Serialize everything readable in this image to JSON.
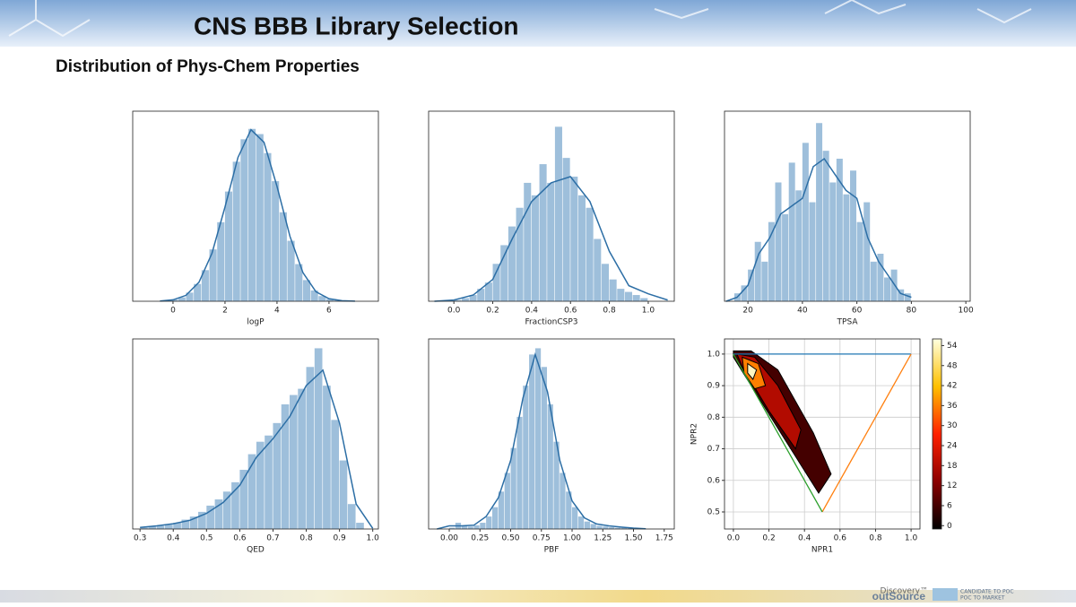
{
  "title": "CNS BBB Library Selection",
  "subtitle": "Distribution of Phys-Chem Properties",
  "footer": {
    "brand_top": "Discovery™",
    "brand": "outSource",
    "tagline_1": "CANDIDATE TO POC",
    "tagline_2": "POC TO MARKET"
  },
  "chart_data": [
    {
      "type": "histogram",
      "x_label": "logP",
      "xlim": [
        -1.55,
        7.9
      ],
      "xticks": [
        0,
        2,
        4,
        6
      ],
      "ylim": [
        0,
        0.44
      ],
      "color": "#9ebfdb",
      "bins": [
        -0.4,
        -0.1,
        0.2,
        0.5,
        0.8,
        1.1,
        1.4,
        1.7,
        2.0,
        2.3,
        2.6,
        2.9,
        3.2,
        3.5,
        3.8,
        4.1,
        4.4,
        4.7,
        5.0,
        5.3,
        5.6,
        5.9,
        6.2,
        6.5,
        6.8
      ],
      "values": [
        0.0015,
        0.004,
        0.009,
        0.02,
        0.04,
        0.072,
        0.12,
        0.183,
        0.254,
        0.323,
        0.375,
        0.399,
        0.387,
        0.343,
        0.278,
        0.206,
        0.14,
        0.086,
        0.049,
        0.025,
        0.012,
        0.005,
        0.002,
        0.001
      ],
      "kde": {
        "color": "#2c6ea5",
        "x": [
          -0.5,
          0,
          0.5,
          1,
          1.5,
          2,
          2.5,
          3,
          3.5,
          4,
          4.5,
          5,
          5.5,
          6,
          6.5,
          7
        ],
        "values": [
          0.0006,
          0.0033,
          0.0136,
          0.044,
          0.111,
          0.218,
          0.333,
          0.397,
          0.368,
          0.266,
          0.15,
          0.066,
          0.022,
          0.006,
          0.0012,
          0.0002
        ]
      }
    },
    {
      "type": "histogram",
      "x_label": "FractionCSP3",
      "xlim": [
        -0.13,
        1.134
      ],
      "xticks": [
        {
          "value": 0,
          "label": "0.0"
        },
        0.2,
        0.4,
        0.6,
        0.8,
        {
          "value": 1,
          "label": "1.0"
        }
      ],
      "ylim": [
        0,
        3.05
      ],
      "color": "#9ebfdb",
      "bins": [
        0,
        0.04,
        0.08,
        0.12,
        0.16,
        0.2,
        0.24,
        0.28,
        0.32,
        0.36,
        0.4,
        0.44,
        0.48,
        0.52,
        0.56,
        0.6,
        0.64,
        0.68,
        0.72,
        0.76,
        0.8,
        0.84,
        0.88,
        0.92,
        0.96,
        1.0
      ],
      "values": [
        0.02,
        0.05,
        0.1,
        0.2,
        0.3,
        0.6,
        0.9,
        1.2,
        1.5,
        1.9,
        1.7,
        2.2,
        1.9,
        2.8,
        2.3,
        2.0,
        1.7,
        1.5,
        1.0,
        0.6,
        0.35,
        0.2,
        0.15,
        0.1,
        0.05
      ],
      "kde": {
        "color": "#2c6ea5",
        "x": [
          -0.1,
          0,
          0.1,
          0.2,
          0.3,
          0.4,
          0.5,
          0.6,
          0.7,
          0.8,
          0.9,
          1.0,
          1.1
        ],
        "values": [
          0,
          0.02,
          0.1,
          0.35,
          1.0,
          1.6,
          1.9,
          2.0,
          1.6,
          0.8,
          0.25,
          0.12,
          0.02
        ]
      }
    },
    {
      "type": "histogram",
      "x_label": "TPSA",
      "xlim": [
        11.4,
        101.6
      ],
      "xticks": [
        20,
        40,
        60,
        80,
        100
      ],
      "ylim": [
        0,
        0.048
      ],
      "color": "#9ebfdb",
      "bins": [
        15,
        17.5,
        20,
        22.5,
        25,
        27.5,
        30,
        32.5,
        35,
        37.5,
        40,
        42.5,
        45,
        47.5,
        50,
        52.5,
        55,
        57.5,
        60,
        62.5,
        65,
        67.5,
        70,
        72.5,
        75,
        77.5,
        80
      ],
      "values": [
        0.002,
        0.004,
        0.008,
        0.015,
        0.01,
        0.02,
        0.03,
        0.022,
        0.035,
        0.028,
        0.04,
        0.025,
        0.045,
        0.038,
        0.03,
        0.036,
        0.027,
        0.033,
        0.02,
        0.025,
        0.01,
        0.012,
        0.006,
        0.008,
        0.003,
        0.002
      ],
      "kde": {
        "color": "#2c6ea5",
        "x": [
          12,
          16,
          20,
          24,
          28,
          32,
          36,
          40,
          44,
          48,
          52,
          56,
          60,
          64,
          68,
          72,
          76,
          80
        ],
        "values": [
          0,
          0.001,
          0.004,
          0.012,
          0.016,
          0.022,
          0.024,
          0.026,
          0.034,
          0.036,
          0.032,
          0.028,
          0.026,
          0.016,
          0.01,
          0.006,
          0.002,
          0.001
        ]
      }
    },
    {
      "type": "histogram",
      "x_label": "QED",
      "xlim": [
        0.278,
        1.017
      ],
      "xticks": [
        0.3,
        0.4,
        0.5,
        0.6,
        0.7,
        0.8,
        0.9,
        {
          "value": 1,
          "label": "1.0"
        }
      ],
      "ylim": [
        0,
        6.1
      ],
      "color": "#9ebfdb",
      "bins": [
        0.3,
        0.325,
        0.35,
        0.375,
        0.4,
        0.425,
        0.45,
        0.475,
        0.5,
        0.525,
        0.55,
        0.575,
        0.6,
        0.625,
        0.65,
        0.675,
        0.7,
        0.725,
        0.75,
        0.775,
        0.8,
        0.825,
        0.85,
        0.875,
        0.9,
        0.925,
        0.95,
        0.975
      ],
      "values": [
        0.05,
        0.08,
        0.1,
        0.14,
        0.2,
        0.3,
        0.4,
        0.55,
        0.75,
        0.95,
        1.2,
        1.5,
        1.9,
        2.4,
        2.8,
        3.0,
        3.4,
        4.0,
        4.3,
        4.5,
        5.2,
        5.8,
        4.6,
        3.5,
        2.2,
        0.8,
        0.2
      ],
      "kde": {
        "color": "#2c6ea5",
        "x": [
          0.3,
          0.35,
          0.4,
          0.45,
          0.5,
          0.55,
          0.6,
          0.65,
          0.7,
          0.75,
          0.8,
          0.85,
          0.9,
          0.95,
          1.0
        ],
        "values": [
          0.05,
          0.1,
          0.17,
          0.28,
          0.5,
          0.85,
          1.4,
          2.3,
          2.9,
          3.6,
          4.6,
          5.1,
          3.4,
          0.8,
          0.02
        ]
      }
    },
    {
      "type": "histogram",
      "x_label": "PBF",
      "xlim": [
        -0.168,
        1.832
      ],
      "xticks": [
        {
          "value": 0,
          "label": "0.00"
        },
        0.25,
        {
          "value": 0.5,
          "label": "0.50"
        },
        0.75,
        {
          "value": 1,
          "label": "1.00"
        },
        1.25,
        {
          "value": 1.5,
          "label": "1.50"
        },
        1.75
      ],
      "ylim": [
        0,
        3.05
      ],
      "color": "#9ebfdb",
      "bins": [
        0,
        0.05,
        0.1,
        0.15,
        0.2,
        0.25,
        0.3,
        0.35,
        0.4,
        0.45,
        0.5,
        0.55,
        0.6,
        0.65,
        0.7,
        0.75,
        0.8,
        0.85,
        0.9,
        0.95,
        1.0,
        1.05,
        1.1,
        1.15,
        1.2,
        1.25,
        1.3,
        1.35,
        1.4,
        1.45,
        1.5,
        1.55,
        1.6
      ],
      "values": [
        0.02,
        0.1,
        0.05,
        0.04,
        0.06,
        0.1,
        0.2,
        0.35,
        0.6,
        0.9,
        1.3,
        1.8,
        2.3,
        2.8,
        2.9,
        2.6,
        2.0,
        1.4,
        0.9,
        0.6,
        0.35,
        0.2,
        0.12,
        0.08,
        0.05,
        0.04,
        0.03,
        0.02,
        0.02,
        0.01,
        0.01,
        0.005
      ],
      "kde": {
        "color": "#2c6ea5",
        "x": [
          -0.1,
          0,
          0.1,
          0.2,
          0.3,
          0.4,
          0.5,
          0.6,
          0.7,
          0.8,
          0.9,
          1.0,
          1.1,
          1.2,
          1.3,
          1.4,
          1.5,
          1.6
        ],
        "values": [
          0,
          0.05,
          0.05,
          0.06,
          0.2,
          0.5,
          1.1,
          2.1,
          2.8,
          2.2,
          1.1,
          0.45,
          0.18,
          0.08,
          0.05,
          0.03,
          0.015,
          0.005
        ]
      }
    },
    {
      "type": "contour",
      "x_label": "NPR1",
      "y_label": "NPR2",
      "grid": true,
      "xlim": [
        -0.05,
        1.05
      ],
      "xticks": [
        {
          "value": 0,
          "label": "0.0"
        },
        0.2,
        0.4,
        0.6,
        0.8,
        {
          "value": 1,
          "label": "1.0"
        }
      ],
      "ylim": [
        0.446,
        1.048
      ],
      "yticks": [
        0.5,
        0.6,
        0.7,
        0.8,
        0.9,
        {
          "value": 1,
          "label": "1.0"
        }
      ],
      "clim": [
        -1,
        56
      ],
      "cticks": [
        0,
        6,
        12,
        18,
        24,
        30,
        36,
        42,
        48,
        54
      ],
      "colorbar_colors": [
        "#000000",
        "#8b0000",
        "#ff2000",
        "#ffc000",
        "#ffffe0"
      ],
      "lines": [
        {
          "color": "#1f77b4",
          "x": [
            0,
            1
          ],
          "y": [
            1,
            1
          ]
        },
        {
          "color": "#ff7f0e",
          "x": [
            1,
            0.5
          ],
          "y": [
            1,
            0.5
          ]
        },
        {
          "color": "#2ca02c",
          "x": [
            0,
            0.5
          ],
          "y": [
            1,
            0.5
          ]
        }
      ],
      "contours": [
        {
          "level": 6,
          "x": [
            0.0,
            0.1,
            0.25,
            0.45,
            0.55,
            0.48,
            0.3,
            0.1,
            0.0
          ],
          "y": [
            1.01,
            1.01,
            0.95,
            0.75,
            0.62,
            0.56,
            0.72,
            0.9,
            0.99
          ]
        },
        {
          "level": 18,
          "x": [
            0.02,
            0.12,
            0.25,
            0.38,
            0.35,
            0.2,
            0.05
          ],
          "y": [
            1.0,
            0.99,
            0.9,
            0.76,
            0.7,
            0.82,
            0.96
          ]
        },
        {
          "level": 36,
          "x": [
            0.05,
            0.14,
            0.18,
            0.12,
            0.06
          ],
          "y": [
            0.99,
            0.97,
            0.9,
            0.89,
            0.94
          ]
        },
        {
          "level": 54,
          "x": [
            0.08,
            0.13,
            0.11,
            0.08
          ],
          "y": [
            0.97,
            0.95,
            0.92,
            0.94
          ]
        }
      ]
    }
  ]
}
